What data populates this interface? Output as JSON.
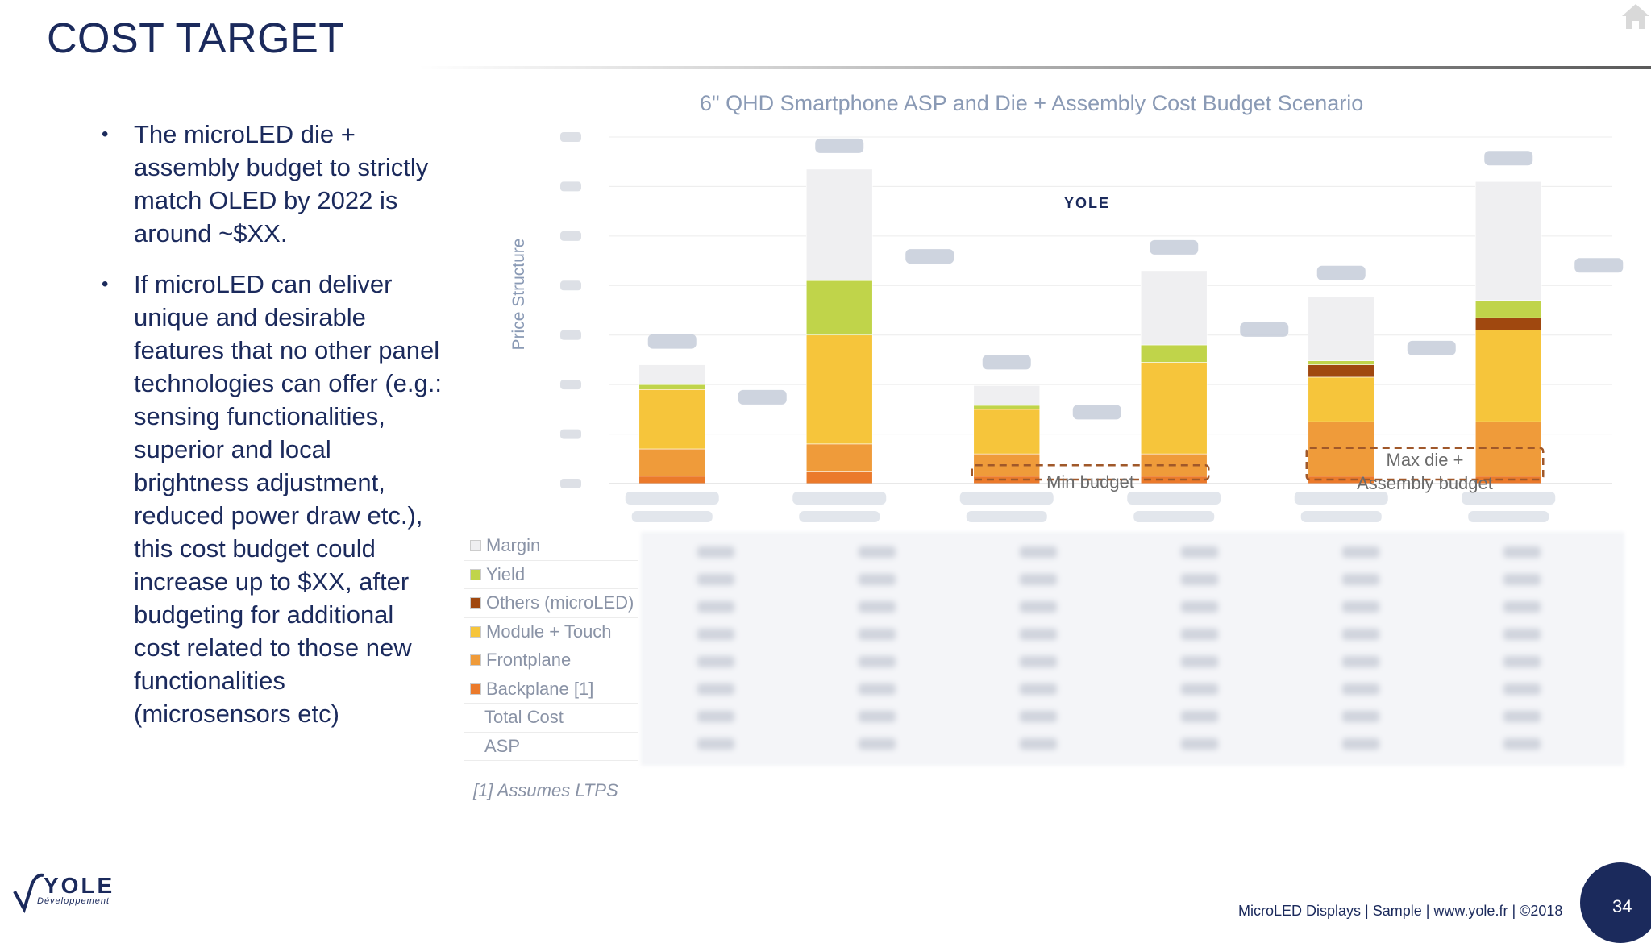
{
  "slide": {
    "title": "COST TARGET",
    "bullets": [
      "The microLED  die + assembly budget to strictly match OLED by 2022 is around ~$XX.",
      "If microLED can deliver unique and desirable features that no other panel technologies can offer (e.g.: sensing functionalities, superior and local brightness adjustment, reduced power draw etc.), this cost budget could increase up to $XX, after budgeting for additional cost related to those new functionalities (microsensors etc)"
    ],
    "footnote": "[1] Assumes LTPS",
    "footer": "MicroLED Displays | Sample | www.yole.fr | ©2018",
    "page_number": "34",
    "logo_text": "YOLE",
    "logo_sub": "Développement",
    "icons": [
      "home-icon",
      "yole-logo"
    ]
  },
  "legend": [
    {
      "label": "Margin",
      "color": "#efeff1"
    },
    {
      "label": "Yield",
      "color": "#c0d44a"
    },
    {
      "label": "Others (microLED)",
      "color": "#a0480f"
    },
    {
      "label": "Module + Touch",
      "color": "#f6c53b"
    },
    {
      "label": "Frontplane",
      "color": "#ef9b3a"
    },
    {
      "label": "Backplane [1]",
      "color": "#eb7a2b"
    },
    {
      "label": "Total Cost",
      "color": ""
    },
    {
      "label": "ASP",
      "color": ""
    }
  ],
  "chart_data": {
    "type": "bar",
    "stacked": true,
    "title": "6\" QHD Smartphone ASP and Die + Assembly Cost Budget Scenario",
    "ylabel": "Price Structure",
    "xlabel": "",
    "ylim": [
      0,
      700
    ],
    "categories_obscured": true,
    "categories": [
      "Scenario 1",
      "Scenario 2",
      "Scenario 3",
      "Scenario 4",
      "Scenario 5",
      "Scenario 6"
    ],
    "series": [
      {
        "name": "Backplane [1]",
        "color": "#eb7a2b",
        "values": [
          15,
          25,
          15,
          15,
          15,
          15
        ]
      },
      {
        "name": "Frontplane",
        "color": "#ef9b3a",
        "values": [
          55,
          55,
          45,
          45,
          110,
          110
        ]
      },
      {
        "name": "Module + Touch",
        "color": "#f6c53b",
        "values": [
          120,
          220,
          90,
          185,
          90,
          185
        ]
      },
      {
        "name": "Others (microLED)",
        "color": "#a0480f",
        "values": [
          0,
          0,
          0,
          0,
          25,
          25
        ]
      },
      {
        "name": "Yield",
        "color": "#c0d44a",
        "values": [
          10,
          110,
          8,
          35,
          8,
          35
        ]
      },
      {
        "name": "Margin",
        "color": "#efeff1",
        "values": [
          40,
          225,
          40,
          150,
          130,
          240
        ]
      }
    ],
    "annotations": [
      {
        "text": "Min budget",
        "style": "dashed-box",
        "spans": [
          3,
          4
        ]
      },
      {
        "text": "Max die + Assembly budget",
        "style": "dashed-box",
        "spans": [
          5,
          6
        ]
      }
    ]
  }
}
